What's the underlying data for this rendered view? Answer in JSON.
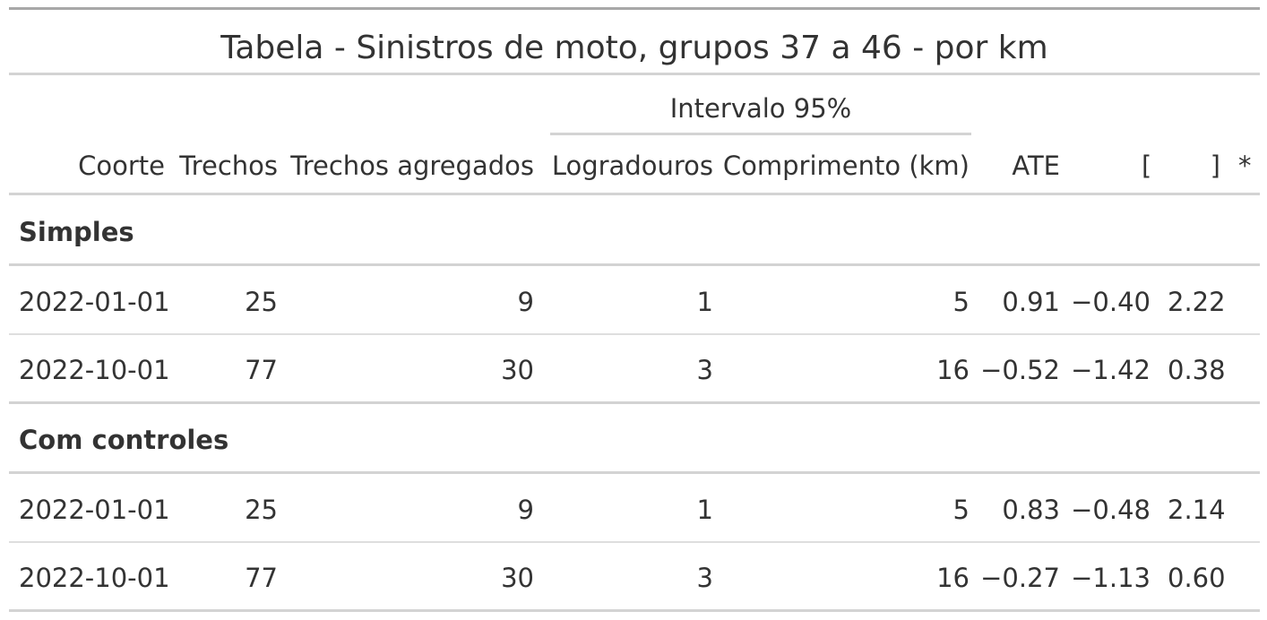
{
  "title": "Tabela - Sinistros de moto, grupos 37 a 46 - por km",
  "spanner": "Intervalo 95%",
  "columns": {
    "coorte": "Coorte",
    "trechos": "Trechos",
    "trechos_agregados": "Trechos agregados",
    "logradouros": "Logradouros",
    "comprimento": "Comprimento (km)",
    "ate": "ATE",
    "ci_low": "[",
    "ci_high": "]",
    "sig": "*"
  },
  "groups": [
    {
      "label": "Simples",
      "rows": [
        {
          "coorte": "2022-01-01",
          "trechos": "25",
          "trechos_agregados": "9",
          "logradouros": "1",
          "comprimento": "5",
          "ate": "0.91",
          "ci_low": "−0.40",
          "ci_high": "2.22"
        },
        {
          "coorte": "2022-10-01",
          "trechos": "77",
          "trechos_agregados": "30",
          "logradouros": "3",
          "comprimento": "16",
          "ate": "−0.52",
          "ci_low": "−1.42",
          "ci_high": "0.38"
        }
      ]
    },
    {
      "label": "Com controles",
      "rows": [
        {
          "coorte": "2022-01-01",
          "trechos": "25",
          "trechos_agregados": "9",
          "logradouros": "1",
          "comprimento": "5",
          "ate": "0.83",
          "ci_low": "−0.48",
          "ci_high": "2.14"
        },
        {
          "coorte": "2022-10-01",
          "trechos": "77",
          "trechos_agregados": "30",
          "logradouros": "3",
          "comprimento": "16",
          "ate": "−0.27",
          "ci_low": "−1.13",
          "ci_high": "0.60"
        }
      ]
    }
  ]
}
